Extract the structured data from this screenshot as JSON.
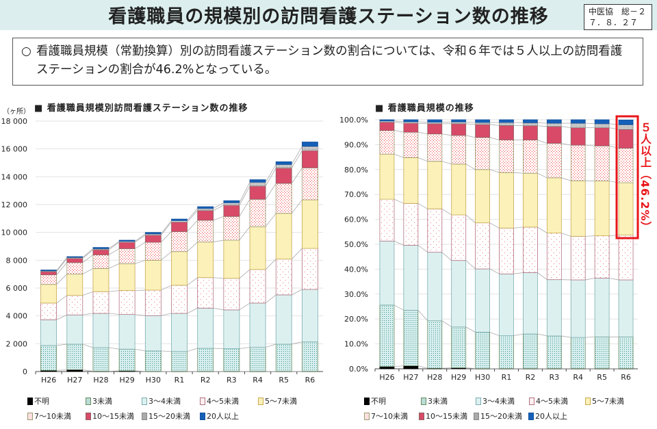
{
  "header": {
    "title": "看護職員の規模別の訪問看護ステーション数の推移",
    "stamp_line1": "中医協　総－２",
    "stamp_line2": "７．８．２７"
  },
  "summary": {
    "bullet": "○",
    "text": "看護職員規模（常勤換算）別の訪問看護ステーション数の割合については、令和６年では５人以上の訪問看護ステーションの割合が46.2%となっている。"
  },
  "colors": {
    "不明": "#000000",
    "3未満": "#d8eeee",
    "3～4未満": "#ddf0f0",
    "4～5未満": "#ffffff",
    "5～7未満": "#fbf1b9",
    "7～10未満": "#ffffff",
    "10～15未満": "#d84a68",
    "15～20未満": "#b8b8b8",
    "20人以上": "#1560b8",
    "highlight": "#e8151a"
  },
  "chart_data": [
    {
      "type": "bar",
      "stacked": true,
      "title": "■ 看護職員規模別訪問看護ステーション数の推移",
      "ylabel": "（ヶ所）",
      "ylim": [
        0,
        18000
      ],
      "yticks": [
        "0",
        "2 000",
        "4 000",
        "6 000",
        "8 000",
        "10 000",
        "12 000",
        "14 000",
        "16 000",
        "18 000"
      ],
      "grid": true,
      "legend": "bottom",
      "categories": [
        "H26",
        "H27",
        "H28",
        "H29",
        "H30",
        "R1",
        "R2",
        "R3",
        "R4",
        "R5",
        "R6"
      ],
      "series": [
        {
          "name": "不明",
          "values": [
            80,
            130,
            20,
            50,
            10,
            10,
            10,
            10,
            10,
            10,
            10
          ]
        },
        {
          "name": "3未満",
          "values": [
            1790,
            1840,
            1700,
            1560,
            1470,
            1430,
            1660,
            1630,
            1730,
            1960,
            2120
          ]
        },
        {
          "name": "3～4未満",
          "values": [
            1850,
            2100,
            2460,
            2490,
            2540,
            2740,
            2890,
            2790,
            3180,
            3540,
            3770
          ]
        },
        {
          "name": "4～5未満",
          "values": [
            1200,
            1400,
            1560,
            1720,
            1830,
            2020,
            2190,
            2270,
            2410,
            2570,
            2950
          ]
        },
        {
          "name": "5～7未満",
          "values": [
            1340,
            1530,
            1670,
            1930,
            2150,
            2420,
            2560,
            2740,
            3080,
            3290,
            3490
          ]
        },
        {
          "name": "7～10未満",
          "values": [
            690,
            830,
            980,
            1080,
            1290,
            1440,
            1560,
            1710,
            1970,
            2150,
            2300
          ]
        },
        {
          "name": "10～15未満",
          "values": [
            230,
            300,
            360,
            460,
            510,
            680,
            700,
            800,
            950,
            1100,
            1240
          ]
        },
        {
          "name": "15～20未満",
          "values": [
            60,
            70,
            80,
            70,
            100,
            110,
            150,
            180,
            270,
            260,
            310
          ]
        },
        {
          "name": "20人以上",
          "values": [
            60,
            60,
            90,
            80,
            100,
            110,
            130,
            150,
            190,
            200,
            310
          ]
        }
      ]
    },
    {
      "type": "bar",
      "stacked": true,
      "title": "■ 看護職員規模の推移",
      "ylim": [
        0,
        100
      ],
      "yticks": [
        "0.0%",
        "10.0%",
        "20.0%",
        "30.0%",
        "40.0%",
        "50.0%",
        "60.0%",
        "70.0%",
        "80.0%",
        "90.0%",
        "100.0%"
      ],
      "grid": true,
      "legend": "bottom",
      "categories": [
        "H26",
        "H27",
        "H28",
        "H29",
        "H30",
        "R1",
        "R2",
        "R3",
        "R4",
        "R5",
        "R6"
      ],
      "series": [
        {
          "name": "不明",
          "values": [
            0.9,
            1.2,
            0.2,
            0.4,
            0.1,
            0.1,
            0.1,
            0.1,
            0.1,
            0.1,
            0.1
          ]
        },
        {
          "name": "3未満",
          "values": [
            24.7,
            22.3,
            19.1,
            16.4,
            14.6,
            13.2,
            13.9,
            13.1,
            12.5,
            12.7,
            12.7
          ]
        },
        {
          "name": "3～4未満",
          "values": [
            25.7,
            26.1,
            27.5,
            26.7,
            25.4,
            24.8,
            24.6,
            22.6,
            23.1,
            23.6,
            22.9
          ]
        },
        {
          "name": "4～5未満",
          "values": [
            16.8,
            16.8,
            17.4,
            18.3,
            18.5,
            18.4,
            18.3,
            18.7,
            17.5,
            17.0,
            18.0
          ]
        },
        {
          "name": "5～7未満",
          "values": [
            18.1,
            18.4,
            19.1,
            20.4,
            21.4,
            22.3,
            21.6,
            22.2,
            22.3,
            22.0,
            21.0
          ]
        },
        {
          "name": "7～10未満",
          "values": [
            9.5,
            10.2,
            11.0,
            11.5,
            12.9,
            13.1,
            13.4,
            13.8,
            14.3,
            14.1,
            13.9
          ]
        },
        {
          "name": "10～15未満",
          "values": [
            3.3,
            3.6,
            4.1,
            4.7,
            5.2,
            5.8,
            5.7,
            6.8,
            7.0,
            7.3,
            7.5
          ]
        },
        {
          "name": "15～20未満",
          "values": [
            0.5,
            0.6,
            0.6,
            0.7,
            0.8,
            1.2,
            1.2,
            1.3,
            1.8,
            1.6,
            1.9
          ]
        },
        {
          "name": "20人以上",
          "values": [
            0.5,
            0.8,
            1.0,
            0.9,
            1.1,
            1.1,
            1.2,
            1.4,
            1.4,
            1.6,
            1.9
          ]
        }
      ],
      "annotation": "５人以上（46.2%）"
    }
  ]
}
